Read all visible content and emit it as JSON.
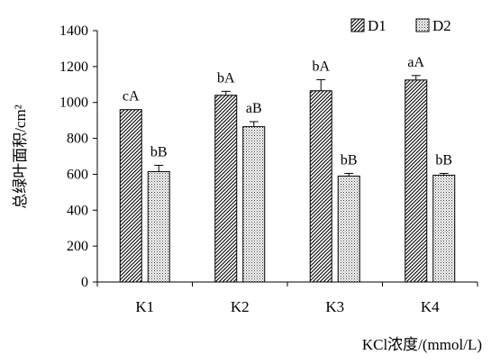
{
  "chart_data": {
    "type": "bar",
    "categories": [
      "K1",
      "K2",
      "K3",
      "K4"
    ],
    "series": [
      {
        "name": "D1",
        "values": [
          960,
          1040,
          1065,
          1125
        ],
        "errors": [
          0,
          22,
          62,
          25
        ],
        "labels": [
          "cA",
          "bA",
          "bA",
          "aA"
        ],
        "pattern": "diagonal-hatch"
      },
      {
        "name": "D2",
        "values": [
          615,
          865,
          590,
          595
        ],
        "errors": [
          35,
          28,
          15,
          10
        ],
        "labels": [
          "bB",
          "aB",
          "bB",
          "bB"
        ],
        "pattern": "dotted"
      }
    ],
    "ylim": [
      0,
      1400
    ],
    "yticks": [
      0,
      200,
      400,
      600,
      800,
      1000,
      1200,
      1400
    ],
    "ylabel": "总绿叶面积/cm²",
    "xlabel": "KCl浓度/(mmol/L)",
    "legend_position": "top-right",
    "grid": false
  }
}
